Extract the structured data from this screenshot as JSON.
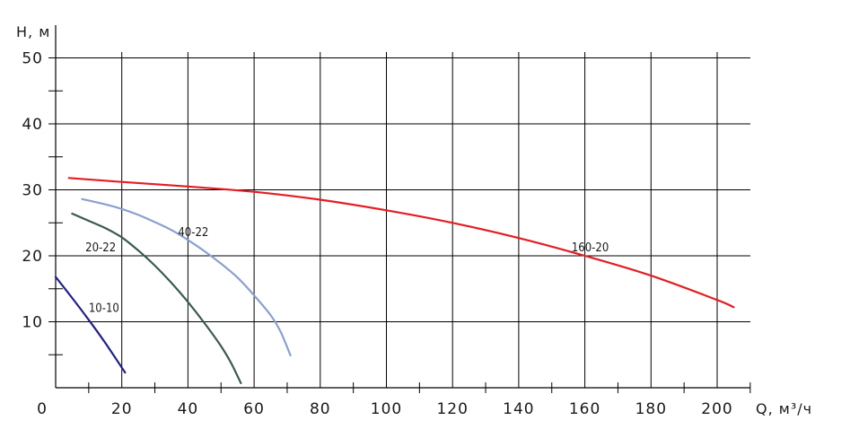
{
  "chart_data": {
    "type": "line",
    "title": "",
    "xlabel": "Q, м³/ч",
    "ylabel": "H, м",
    "xlim": [
      0,
      210
    ],
    "ylim": [
      0,
      50
    ],
    "x_ticks": [
      0,
      20,
      40,
      60,
      80,
      100,
      120,
      140,
      160,
      180,
      200
    ],
    "y_ticks": [
      10,
      20,
      30,
      40,
      50
    ],
    "grid": true,
    "series": [
      {
        "name": "10-10",
        "color": "#1f1f8a",
        "x": [
          0,
          5,
          10,
          15,
          21
        ],
        "y": [
          16.8,
          13.6,
          10.3,
          6.8,
          2.3
        ]
      },
      {
        "name": "20-22",
        "color": "#3a5a52",
        "x": [
          5,
          10,
          15,
          20,
          25,
          30,
          35,
          40,
          45,
          50,
          53,
          56
        ],
        "y": [
          26.4,
          25.3,
          24.2,
          22.8,
          20.8,
          18.5,
          15.9,
          13.0,
          9.8,
          6.3,
          3.8,
          0.7
        ]
      },
      {
        "name": "40-22",
        "color": "#8aa0d0",
        "x": [
          8,
          15,
          20,
          25,
          30,
          35,
          40,
          45,
          50,
          55,
          60,
          65,
          68,
          71
        ],
        "y": [
          28.6,
          27.8,
          27.1,
          26.2,
          25.1,
          23.9,
          22.4,
          20.7,
          18.8,
          16.7,
          14.0,
          11.0,
          8.5,
          4.9
        ]
      },
      {
        "name": "160-20",
        "color": "#e31e24",
        "x": [
          4,
          20,
          40,
          60,
          80,
          100,
          120,
          140,
          160,
          180,
          200,
          205
        ],
        "y": [
          31.8,
          31.2,
          30.5,
          29.7,
          28.5,
          26.9,
          25.0,
          22.7,
          20.0,
          17.0,
          13.3,
          12.2
        ]
      }
    ],
    "series_labels": [
      {
        "text": "10-10",
        "x": 10,
        "y": 11.5
      },
      {
        "text": "20-22",
        "x": 9,
        "y": 20.7
      },
      {
        "text": "40-22",
        "x": 37,
        "y": 23.0
      },
      {
        "text": "160-20",
        "x": 156,
        "y": 20.7
      }
    ]
  }
}
